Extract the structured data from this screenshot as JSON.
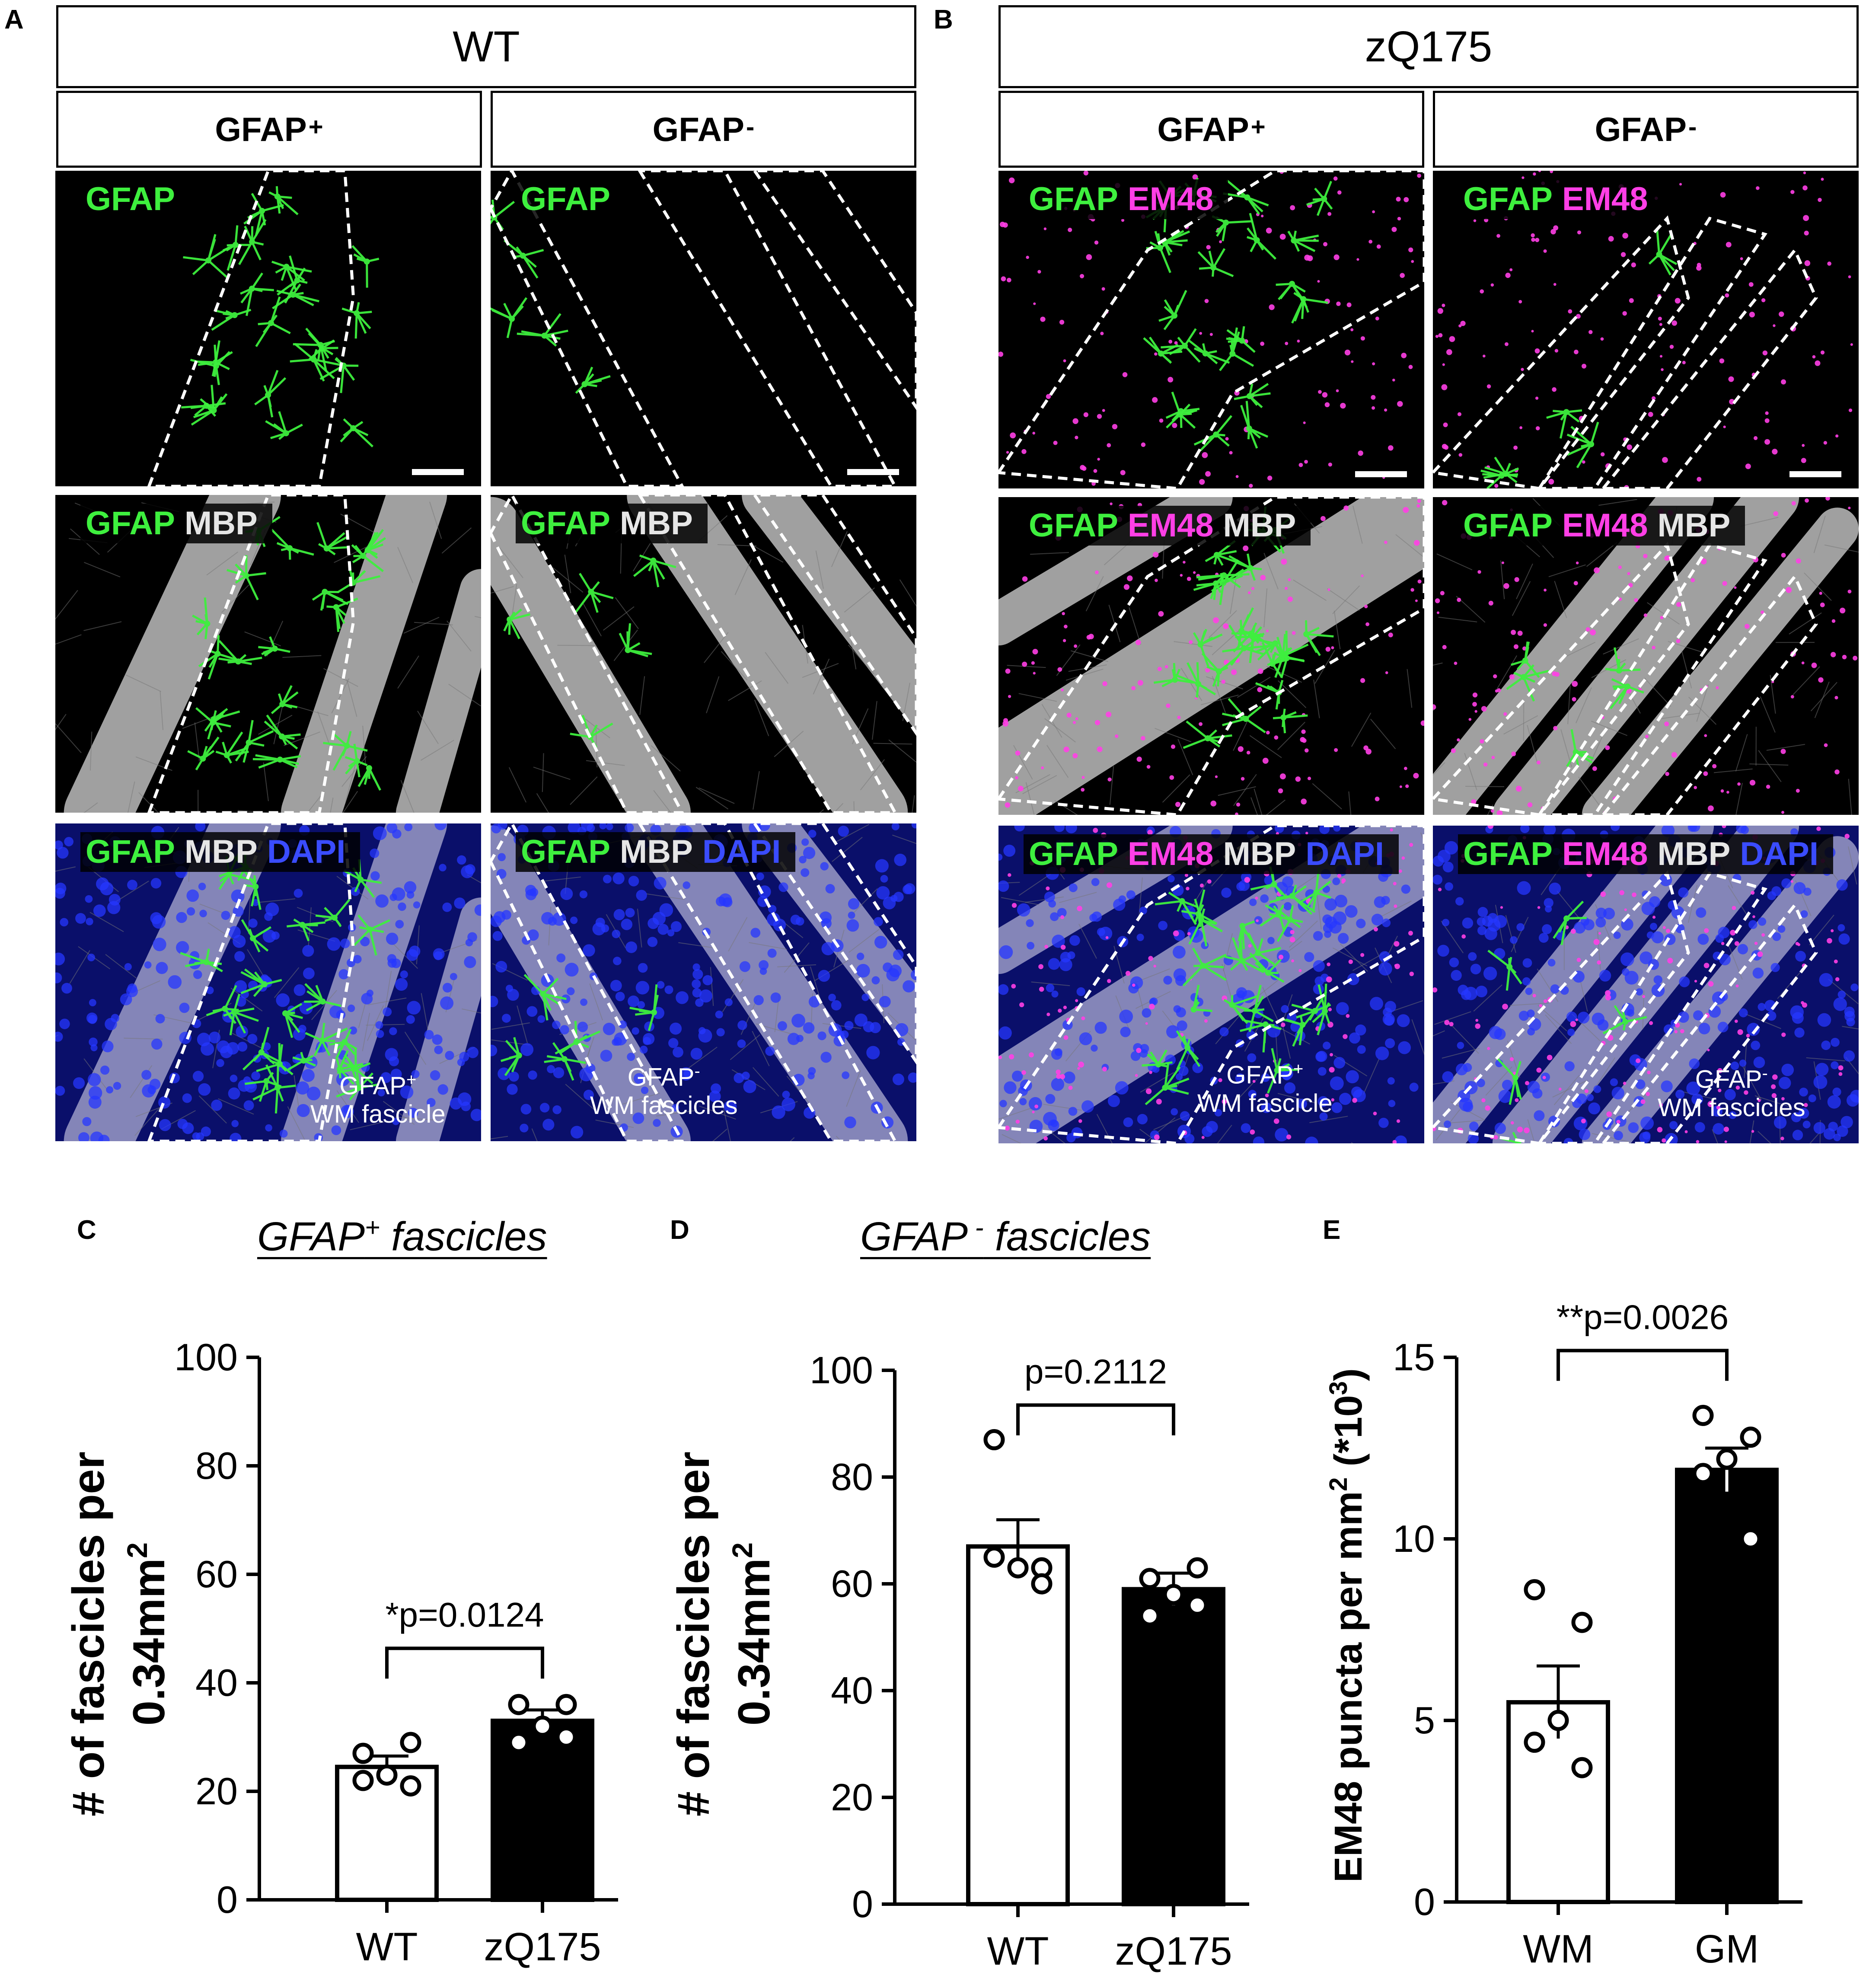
{
  "panels": {
    "A": "A",
    "B": "B",
    "C": "C",
    "D": "D",
    "E": "E"
  },
  "headers": {
    "wt": "WT",
    "zq": "zQ175",
    "gfap_pos_base": "GFAP",
    "gfap_pos_sup": "+",
    "gfap_neg_base": "GFAP",
    "gfap_neg_sup": "-"
  },
  "channels": {
    "gfap": "GFAP",
    "mbp": "MBP",
    "dapi": "DAPI",
    "em48": "EM48"
  },
  "annotations": {
    "a_pos_line1_base": "GFAP",
    "a_pos_line1_sup": "+",
    "a_pos_line2": "WM fascicle",
    "a_neg_line1_base": "GFAP",
    "a_neg_line1_sup": "-",
    "a_neg_line2": "WM fascicles",
    "b_pos_line1_base": "GFAP",
    "b_pos_line1_sup": "+",
    "b_pos_line2": "WM fascicle",
    "b_neg_line1_base": "GFAP",
    "b_neg_line1_sup": "-",
    "b_neg_line2": "WM fascicles"
  },
  "colors": {
    "gfap": "#3ef03e",
    "em48": "#ff3fe6",
    "mbp": "#d8d8d8",
    "dapi": "#2a3cff"
  },
  "chart_data": [
    {
      "id": "C",
      "type": "bar",
      "title_base": "GFAP",
      "title_sup": "+",
      "title_rest": " fascicles",
      "ylabel_line1": "# of fascicles per",
      "ylabel_line2_base": "0.34mm",
      "ylabel_line2_sup": "2",
      "ylim": [
        0,
        100
      ],
      "yticks": [
        "0",
        "20",
        "40",
        "60",
        "80",
        "100"
      ],
      "categories": [
        "WT",
        "zQ175"
      ],
      "values": [
        24.5,
        33
      ],
      "sem": [
        2,
        2
      ],
      "points": [
        [
          22,
          21,
          23,
          27,
          29
        ],
        [
          29,
          30,
          32,
          36,
          36
        ]
      ],
      "bar_colors": [
        "#ffffff",
        "#000000"
      ],
      "significance": "*p=0.0124"
    },
    {
      "id": "D",
      "type": "bar",
      "title_base": "GFAP",
      "title_sup": " -",
      "title_rest": " fascicles",
      "ylabel_line1": "# of fascicles per",
      "ylabel_line2_base": "0.34mm",
      "ylabel_line2_sup": "2",
      "ylim": [
        0,
        100
      ],
      "yticks": [
        "0",
        "20",
        "40",
        "60",
        "80",
        "100"
      ],
      "categories": [
        "WT",
        "zQ175"
      ],
      "values": [
        67,
        59
      ],
      "sem": [
        5,
        3
      ],
      "points": [
        [
          87,
          63,
          63,
          65,
          60
        ],
        [
          61,
          63,
          58,
          54,
          56
        ]
      ],
      "bar_colors": [
        "#ffffff",
        "#000000"
      ],
      "significance": "p=0.2112"
    },
    {
      "id": "E",
      "type": "bar",
      "ylabel_base": "EM48 puncta per mm",
      "ylabel_sup1": "2",
      "ylabel_mid": " (*10",
      "ylabel_sup2": "3",
      "ylabel_end": ")",
      "ylim": [
        0,
        15
      ],
      "yticks": [
        "0",
        "5",
        "10",
        "15"
      ],
      "categories": [
        "WM",
        "GM"
      ],
      "values": [
        5.5,
        11.9
      ],
      "sem": [
        1.0,
        0.6
      ],
      "points": [
        [
          8.6,
          7.7,
          5.0,
          4.4,
          3.7
        ],
        [
          13.4,
          12.8,
          12.2,
          11.8,
          10.0
        ]
      ],
      "bar_colors": [
        "#ffffff",
        "#000000"
      ],
      "significance": "**p=0.0026"
    }
  ]
}
